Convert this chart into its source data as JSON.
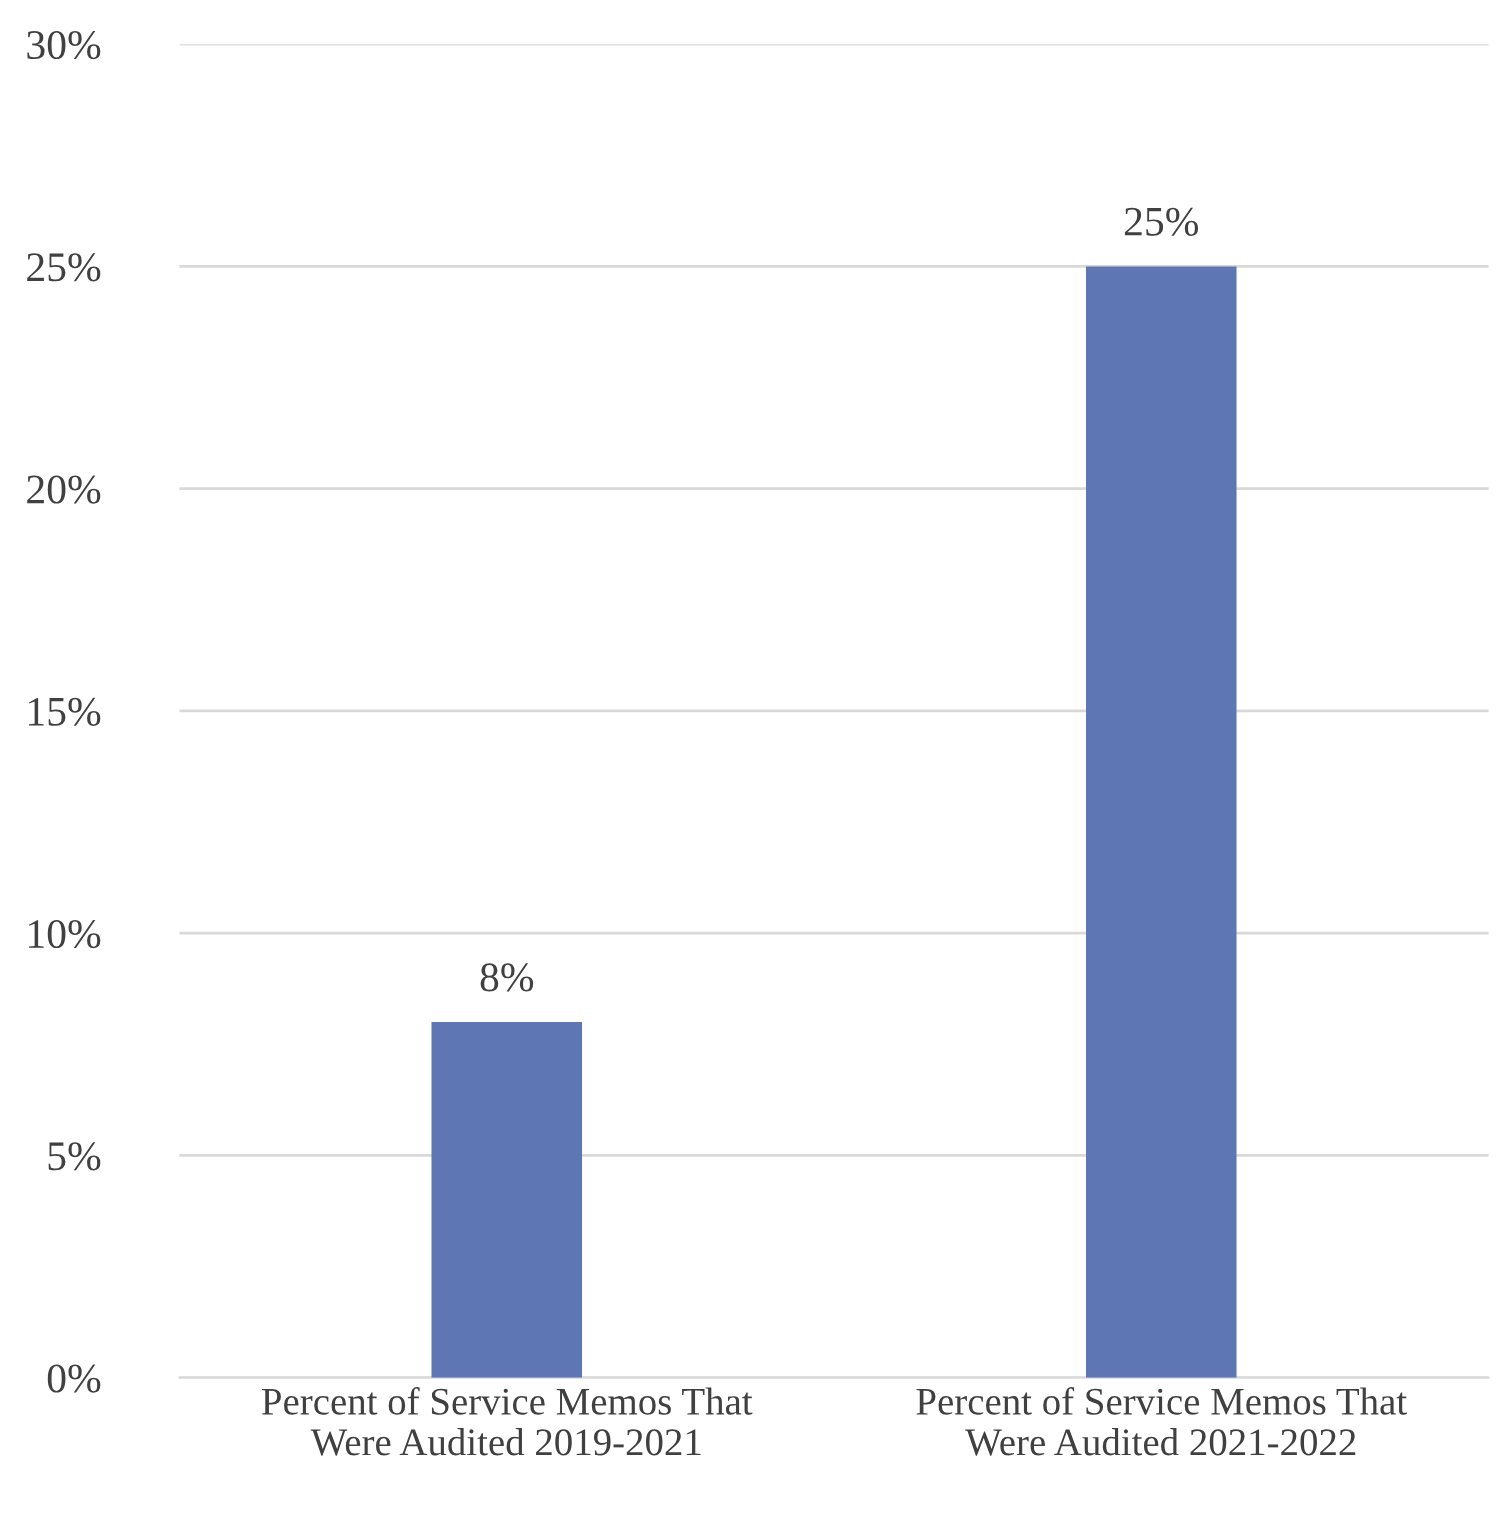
{
  "chart_data": {
    "type": "bar",
    "categories": [
      "Percent of Service Memos That Were Audited 2019-2021",
      "Percent of Service Memos That Were Audited 2021-2022"
    ],
    "values": [
      8,
      25
    ],
    "color": "#5f76b4",
    "value_labels": [
      "8%",
      "25%"
    ],
    "ylim": [
      0,
      30
    ],
    "yticks": [
      {
        "value": 0,
        "label": "0%"
      },
      {
        "value": 5,
        "label": "5%"
      },
      {
        "value": 10,
        "label": "10%"
      },
      {
        "value": 15,
        "label": "15%"
      },
      {
        "value": 20,
        "label": "20%"
      },
      {
        "value": 25,
        "label": "25%"
      },
      {
        "value": 30,
        "label": "30%"
      }
    ],
    "grid": "y"
  }
}
